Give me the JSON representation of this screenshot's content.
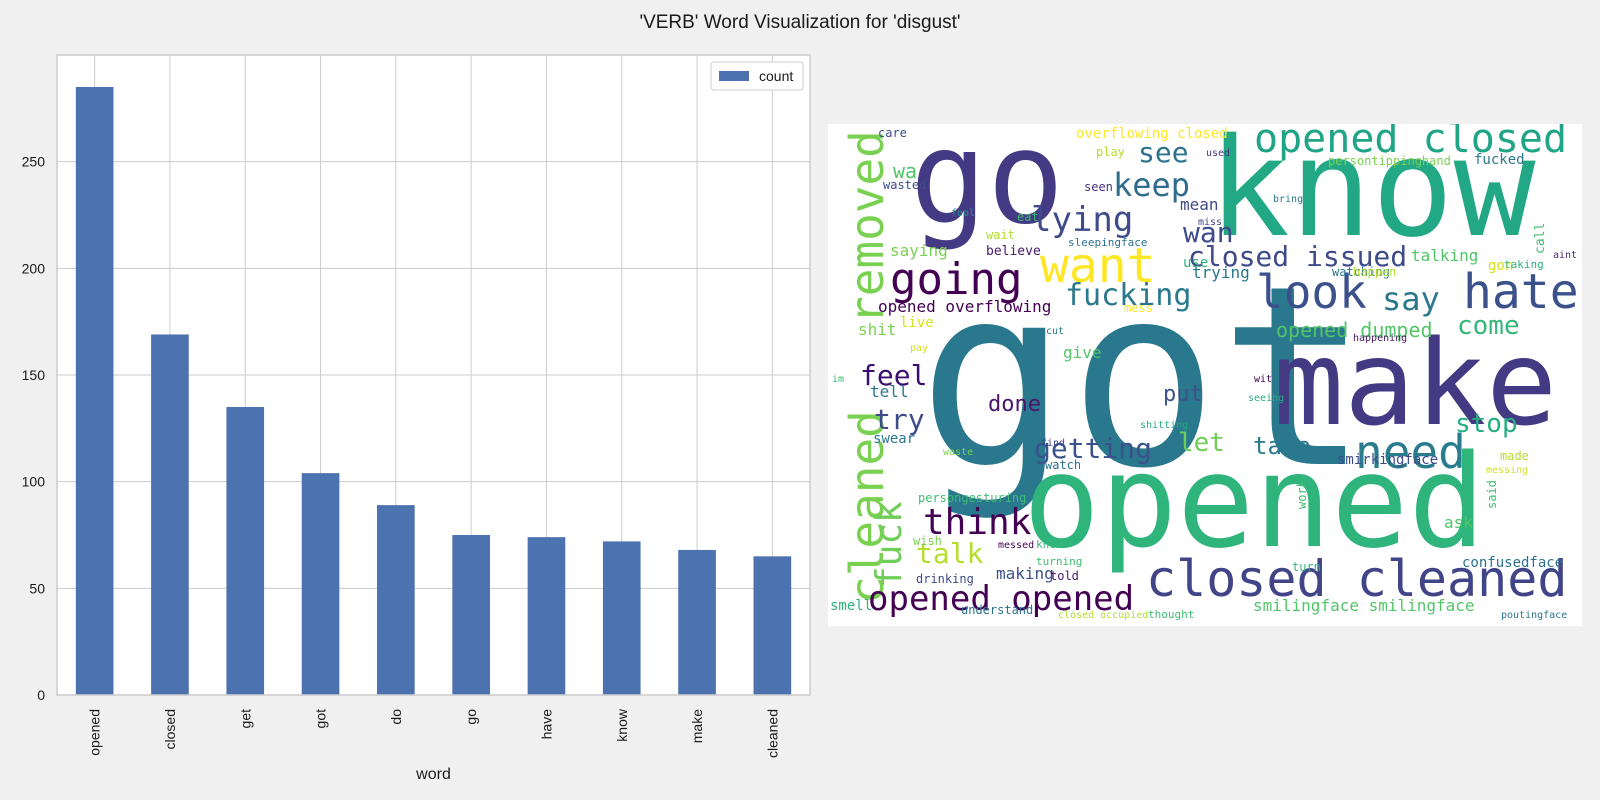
{
  "figure": {
    "title": "'VERB' Word Visualization for 'disgust'"
  },
  "chart_data": [
    {
      "type": "bar",
      "categories": [
        "opened",
        "closed",
        "get",
        "got",
        "do",
        "go",
        "have",
        "know",
        "make",
        "cleaned"
      ],
      "series": [
        {
          "name": "count",
          "values": [
            285,
            169,
            135,
            104,
            89,
            75,
            74,
            72,
            68,
            65
          ],
          "color": "#4c72b0"
        }
      ],
      "xlabel": "word",
      "ylabel": "",
      "ylim": [
        0,
        300
      ],
      "yticks": [
        0,
        50,
        100,
        150,
        200,
        250
      ],
      "grid": true,
      "legend": "top-right",
      "bar_color": "#4c72b0"
    }
  ],
  "wordcloud": {
    "words": [
      "got",
      "know",
      "make",
      "opened",
      "go",
      "closed cleaned",
      "opened closed",
      "hate",
      "cleaned",
      "removed",
      "want",
      "going",
      "look",
      "need",
      "opened opened",
      "fuck",
      "closed issued",
      "think",
      "keep",
      "fucking",
      "lying",
      "say",
      "feel",
      "getting",
      "see",
      "come",
      "stop",
      "talk",
      "opened dumped",
      "try",
      "take",
      "let",
      "wan",
      "put",
      "done",
      "opened overflowing",
      "wa",
      "saying",
      "shit",
      "smirkingface",
      "making",
      "smilingface smilingface",
      "confusedface",
      "talking",
      "trying",
      "mean",
      "tell",
      "swear",
      "give",
      "live",
      "ask",
      "smell",
      "overflowing closed",
      "care",
      "wasted",
      "play",
      "fucked",
      "persontippinghand",
      "used",
      "seen",
      "believe",
      "sleepingface",
      "watching",
      "happen",
      "gon",
      "taking",
      "call",
      "aint",
      "eat",
      "fool",
      "wait",
      "miss",
      "bring",
      "use",
      "mess",
      "cut",
      "pay",
      "happening",
      "im",
      "wit",
      "seeing",
      "shitting",
      "find",
      "watch",
      "waste",
      "made",
      "messing",
      "work",
      "said",
      "persongesturing",
      "knew",
      "wish",
      "messed",
      "turning",
      "drinking",
      "told",
      "turn",
      "understand",
      "closed occupied",
      "thought",
      "poutingface"
    ]
  }
}
